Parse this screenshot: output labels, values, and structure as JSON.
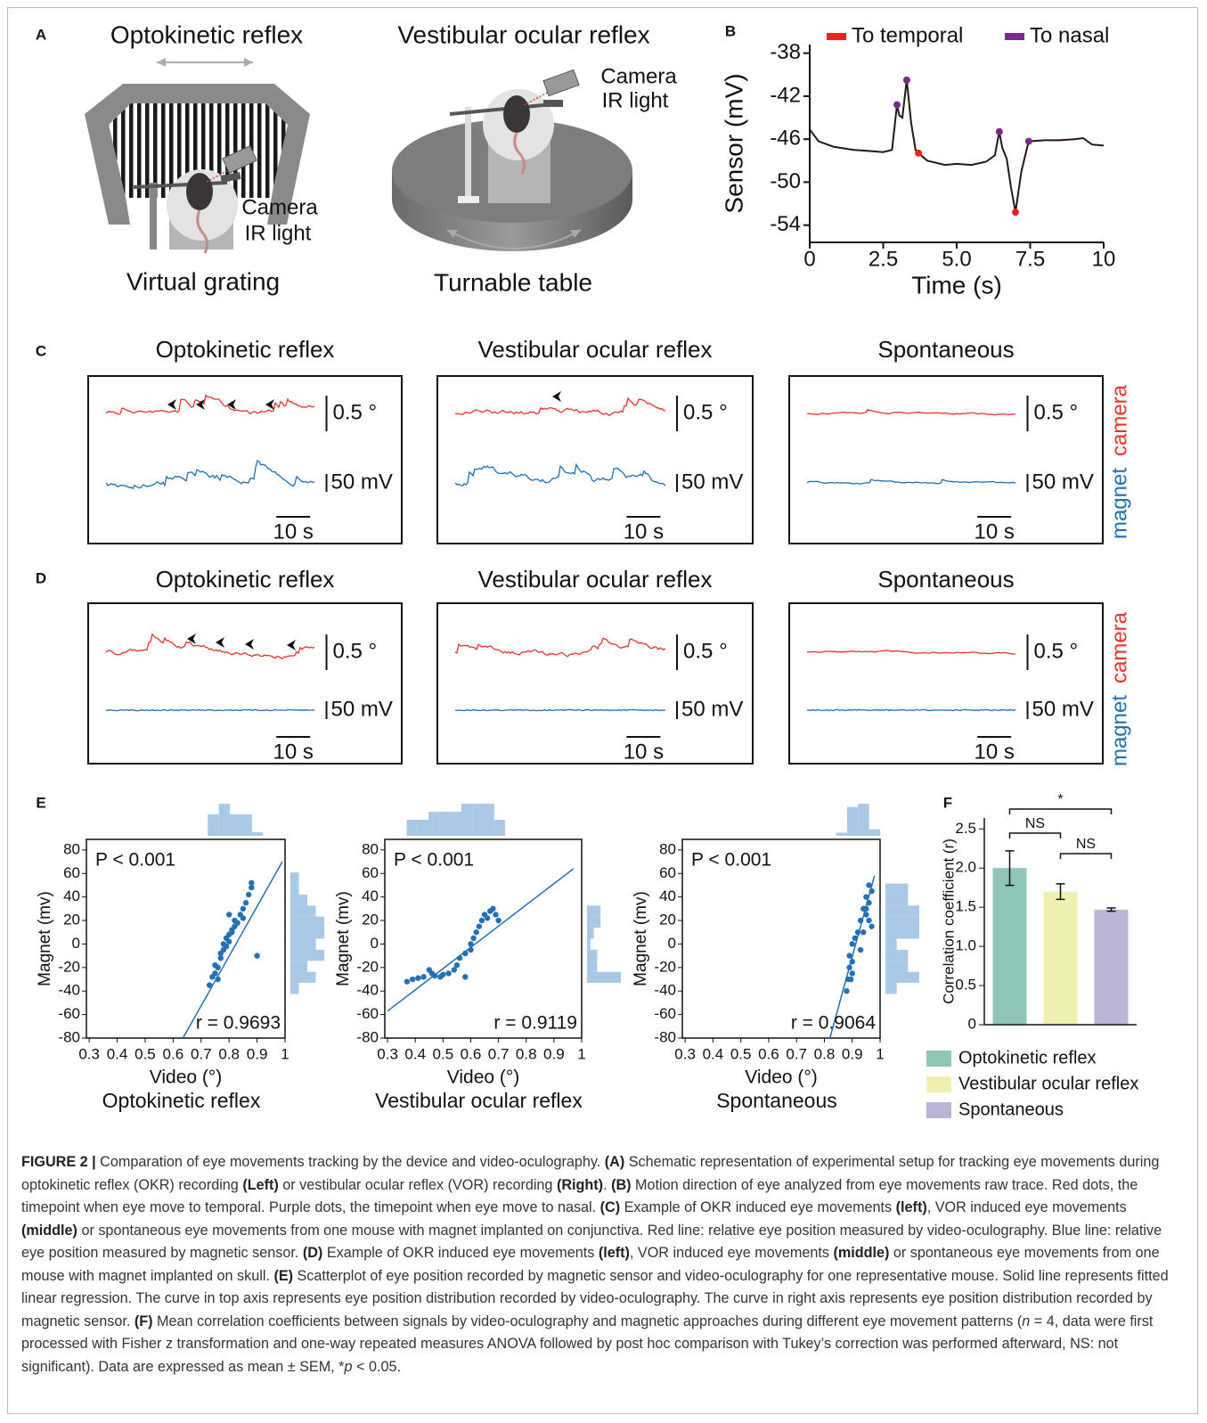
{
  "panels": {
    "A": {
      "label": "A",
      "left_title": "Optokinetic reflex",
      "right_title": "Vestibular ocular reflex",
      "left_device": [
        "Camera",
        "IR light"
      ],
      "right_device": [
        "Camera",
        "IR light"
      ],
      "left_caption": "Virtual grating",
      "right_caption": "Turnable table"
    },
    "B": {
      "label": "B"
    },
    "C": {
      "label": "C",
      "titles": [
        "Optokinetic reflex",
        "Vestibular ocular reflex",
        "Spontaneous"
      ],
      "scale_angle": "0.5 °",
      "scale_voltage": "50 mV",
      "scale_time": "10 s",
      "side_labels": [
        "magnet",
        "camera"
      ]
    },
    "D": {
      "label": "D",
      "titles": [
        "Optokinetic reflex",
        "Vestibular ocular reflex",
        "Spontaneous"
      ],
      "scale_angle": "0.5 °",
      "scale_voltage": "50 mV",
      "scale_time": "10 s",
      "side_labels": [
        "magnet",
        "camera"
      ]
    },
    "E": {
      "label": "E"
    },
    "F": {
      "label": "F"
    }
  },
  "chart_data": [
    {
      "type": "line",
      "xlabel": "Time (s)",
      "ylabel": "Sensor (mV)",
      "color": "#231815",
      "x": [
        0,
        0.3,
        0.8,
        1.5,
        2.0,
        2.5,
        2.8,
        2.97,
        3.05,
        3.15,
        3.3,
        3.45,
        3.6,
        3.7,
        4.0,
        4.6,
        5.0,
        5.5,
        6.0,
        6.3,
        6.45,
        6.55,
        6.7,
        6.85,
        7.0,
        7.2,
        7.45,
        8.0,
        8.5,
        9.0,
        9.3,
        9.6,
        10
      ],
      "values": [
        -45.1,
        -46.2,
        -46.7,
        -47.0,
        -47.1,
        -47.2,
        -47.0,
        -42.8,
        -43.8,
        -44.0,
        -40.5,
        -44.5,
        -47.0,
        -47.3,
        -48.0,
        -48.4,
        -48.3,
        -48.4,
        -48.1,
        -47.5,
        -45.3,
        -46.8,
        -47.8,
        -50.5,
        -52.8,
        -49.0,
        -46.2,
        -46.1,
        -46.1,
        -46.0,
        -45.9,
        -46.5,
        -46.6
      ],
      "series": [
        {
          "name": "To temporal",
          "color": "#e8261f",
          "x": [
            3.7,
            7.0
          ],
          "values": [
            -47.3,
            -52.8
          ]
        },
        {
          "name": "To nasal",
          "color": "#7b2a8c",
          "x": [
            2.97,
            3.3,
            6.45,
            7.45
          ],
          "values": [
            -42.8,
            -40.5,
            -45.3,
            -46.2
          ]
        }
      ],
      "xlim": [
        0,
        10
      ],
      "ylim": [
        -55.6,
        -37.2
      ],
      "xticks": [
        0,
        2.5,
        {
          "value": 5,
          "label": "5.0"
        },
        7.5,
        10
      ],
      "yticks": [
        -38,
        -42,
        -46,
        -50,
        -54
      ]
    },
    {
      "type": "scatter",
      "title": "Optokinetic reflex",
      "xlabel": "Video (°)",
      "ylabel": "Magnet (mv)",
      "annotations": [
        "P < 0.001",
        "r = 0.9693"
      ],
      "color": "#2371b5",
      "x": [
        0.73,
        0.74,
        0.75,
        0.75,
        0.76,
        0.77,
        0.77,
        0.78,
        0.78,
        0.79,
        0.79,
        0.8,
        0.8,
        0.81,
        0.81,
        0.82,
        0.82,
        0.83,
        0.84,
        0.85,
        0.86,
        0.87,
        0.88,
        0.88,
        0.85,
        0.9,
        0.76,
        0.8
      ],
      "values": [
        -35,
        -28,
        -25,
        -18,
        -20,
        -12,
        -8,
        -5,
        0,
        -2,
        5,
        2,
        8,
        10,
        12,
        15,
        20,
        18,
        25,
        30,
        35,
        42,
        48,
        52,
        22,
        -10,
        -30,
        25
      ],
      "fit": {
        "x": [
          0.635,
          0.99
        ],
        "values": [
          -80,
          70
        ]
      },
      "xlim": [
        0.29,
        1.0
      ],
      "ylim": [
        -80,
        89
      ],
      "xticks": [
        0.3,
        0.4,
        0.5,
        0.6,
        0.7,
        0.8,
        0.9,
        1
      ],
      "yticks": [
        -80,
        -60,
        -40,
        -20,
        0,
        20,
        40,
        60,
        80
      ]
    },
    {
      "type": "scatter",
      "title": "Vestibular ocular reflex",
      "xlabel": "Video (°)",
      "ylabel": "Magnet (mv)",
      "annotations": [
        "P < 0.001",
        "r = 0.9119"
      ],
      "color": "#2371b5",
      "x": [
        0.37,
        0.39,
        0.41,
        0.43,
        0.45,
        0.47,
        0.49,
        0.5,
        0.52,
        0.54,
        0.55,
        0.56,
        0.58,
        0.6,
        0.61,
        0.62,
        0.63,
        0.64,
        0.65,
        0.66,
        0.67,
        0.68,
        0.69,
        0.7,
        0.46,
        0.6,
        0.58
      ],
      "values": [
        -32,
        -30,
        -29,
        -28,
        -22,
        -27,
        -28,
        -26,
        -25,
        -22,
        -18,
        -12,
        -8,
        0,
        5,
        10,
        15,
        20,
        25,
        22,
        28,
        30,
        25,
        20,
        -25,
        -5,
        -28
      ],
      "fit": {
        "x": [
          0.3,
          0.97
        ],
        "values": [
          -57,
          64
        ]
      },
      "xlim": [
        0.29,
        1.0
      ],
      "ylim": [
        -80,
        89
      ],
      "xticks": [
        0.3,
        0.4,
        0.5,
        0.6,
        0.7,
        0.8,
        0.9,
        1
      ],
      "yticks": [
        -80,
        -60,
        -40,
        -20,
        0,
        20,
        40,
        60,
        80
      ]
    },
    {
      "type": "scatter",
      "title": "Spontaneous",
      "xlabel": "Video (°)",
      "ylabel": "Magnet (mv)",
      "annotations": [
        "P < 0.001",
        "r = 0.9064"
      ],
      "color": "#2371b5",
      "x": [
        0.88,
        0.885,
        0.89,
        0.89,
        0.895,
        0.9,
        0.9,
        0.9,
        0.91,
        0.92,
        0.93,
        0.94,
        0.94,
        0.95,
        0.95,
        0.96,
        0.96,
        0.97,
        0.97,
        0.93,
        0.95,
        0.96
      ],
      "values": [
        -40,
        -30,
        -20,
        -10,
        -30,
        0,
        -25,
        -15,
        5,
        10,
        20,
        30,
        10,
        40,
        25,
        50,
        35,
        45,
        15,
        -5,
        30,
        20
      ],
      "fit": {
        "x": [
          0.82,
          0.98
        ],
        "values": [
          -80,
          58
        ]
      },
      "xlim": [
        0.29,
        1.0
      ],
      "ylim": [
        -80,
        89
      ],
      "xticks": [
        0.3,
        0.4,
        0.5,
        0.6,
        0.7,
        0.8,
        0.9,
        1
      ],
      "yticks": [
        -80,
        -60,
        -40,
        -20,
        0,
        20,
        40,
        60,
        80
      ]
    },
    {
      "type": "bar",
      "ylabel": "Correlation coefficient (r)",
      "categories": [
        "Optokinetic reflex",
        "Vestibular ocular reflex",
        "Spontaneous"
      ],
      "values": [
        2.0,
        1.7,
        1.47
      ],
      "errors": [
        0.22,
        0.1,
        0.02
      ],
      "colors": [
        "#8fc5b6",
        "#f1f0b3",
        "#b8b5d7"
      ],
      "annotations": [
        "NS",
        "NS",
        "*"
      ],
      "ylim": [
        0,
        2.64
      ],
      "yticks": [
        0,
        0.5,
        {
          "value": 1,
          "label": "1.0"
        },
        1.5,
        {
          "value": 2,
          "label": "2.0"
        },
        2.5
      ]
    }
  ],
  "caption": {
    "parts": [
      "FIGURE 2 |",
      " Comparation of eye movements tracking by the device and video-oculography. ",
      "(A)",
      " Schematic representation of experimental setup for tracking eye movements during optokinetic reflex (OKR) recording ",
      "(Left)",
      " or vestibular ocular reflex (VOR) recording ",
      "(Right)",
      ". ",
      "(B)",
      " Motion direction of eye analyzed from eye movements raw trace. Red dots, the timepoint when eye move to temporal. Purple dots, the timepoint when eye move to nasal. ",
      "(C)",
      " Example of OKR induced eye movements ",
      "(left)",
      ", VOR induced eye movements ",
      "(middle)",
      " or spontaneous eye movements from one mouse with magnet implanted on conjunctiva. Red line: relative eye position measured by video-oculography. Blue line: relative eye position measured by magnetic sensor. ",
      "(D)",
      " Example of OKR induced eye movements ",
      "(left)",
      ", VOR induced eye movements ",
      "(middle)",
      " or spontaneous eye movements from one mouse with magnet implanted on skull. ",
      "(E)",
      " Scatterplot of eye position recorded by magnetic sensor and video-oculography for one representative mouse. Solid line represents fitted linear regression. The curve in top axis represents eye position distribution recorded by video-oculography. The curve in right axis represents eye position distribution recorded by magnetic sensor. ",
      "(F)",
      " Mean correlation coefficients between signals by video-oculography and magnetic approaches during different eye movement patterns (",
      "n",
      " = 4, data were first processed with Fisher z transformation and one-way repeated measures ANOVA followed by post hoc comparison with Tukey’s correction was performed afterward, NS: not significant). Data are expressed as mean ± SEM, *",
      "p",
      " < 0.05."
    ]
  }
}
